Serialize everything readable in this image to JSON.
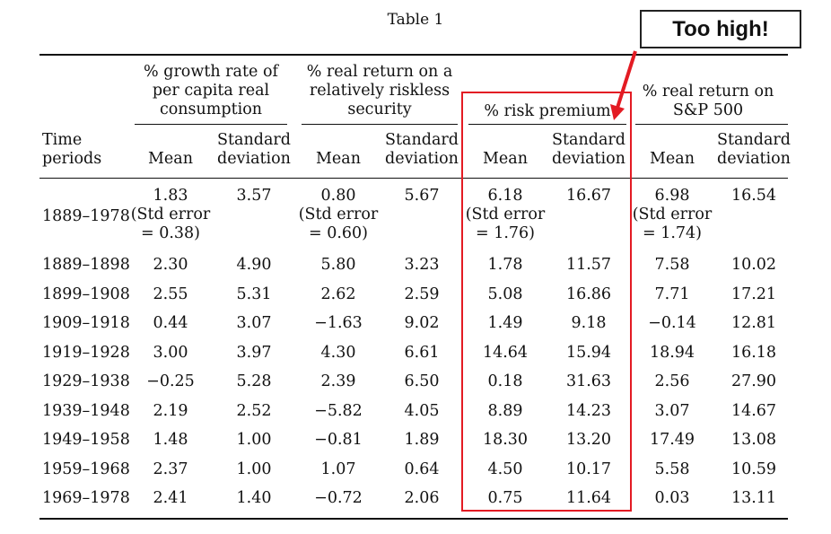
{
  "caption": "Table 1",
  "callout": "Too high!",
  "colors": {
    "highlight": "#e31b23",
    "arrow": "#e31b23"
  },
  "header": {
    "time_periods": "Time\nperiods",
    "groups": [
      "% growth rate of\nper capita real\nconsumption",
      "% real return on a\nrelatively riskless\nsecurity",
      "% risk premium",
      "% real return on\nS&P 500"
    ],
    "mean": "Mean",
    "std": "Standard\ndeviation"
  },
  "summary": {
    "period": "1889–1978",
    "cells": [
      {
        "mean": "1.83\n(Std error\n= 0.38)",
        "std": "3.57"
      },
      {
        "mean": "0.80\n(Std error\n= 0.60)",
        "std": "5.67"
      },
      {
        "mean": "6.18\n(Std error\n= 1.76)",
        "std": "16.67"
      },
      {
        "mean": "6.98\n(Std error\n= 1.74)",
        "std": "16.54"
      }
    ]
  },
  "rows": [
    {
      "period": "1889–1898",
      "values": [
        "2.30",
        "4.90",
        "5.80",
        "3.23",
        "1.78",
        "11.57",
        "7.58",
        "10.02"
      ]
    },
    {
      "period": "1899–1908",
      "values": [
        "2.55",
        "5.31",
        "2.62",
        "2.59",
        "5.08",
        "16.86",
        "7.71",
        "17.21"
      ]
    },
    {
      "period": "1909–1918",
      "values": [
        "0.44",
        "3.07",
        "−1.63",
        "9.02",
        "1.49",
        "9.18",
        "−0.14",
        "12.81"
      ]
    },
    {
      "period": "1919–1928",
      "values": [
        "3.00",
        "3.97",
        "4.30",
        "6.61",
        "14.64",
        "15.94",
        "18.94",
        "16.18"
      ]
    },
    {
      "period": "1929–1938",
      "values": [
        "−0.25",
        "5.28",
        "2.39",
        "6.50",
        "0.18",
        "31.63",
        "2.56",
        "27.90"
      ]
    },
    {
      "period": "1939–1948",
      "values": [
        "2.19",
        "2.52",
        "−5.82",
        "4.05",
        "8.89",
        "14.23",
        "3.07",
        "14.67"
      ]
    },
    {
      "period": "1949–1958",
      "values": [
        "1.48",
        "1.00",
        "−0.81",
        "1.89",
        "18.30",
        "13.20",
        "17.49",
        "13.08"
      ]
    },
    {
      "period": "1959–1968",
      "values": [
        "2.37",
        "1.00",
        "1.07",
        "0.64",
        "4.50",
        "10.17",
        "5.58",
        "10.59"
      ]
    },
    {
      "period": "1969–1978",
      "values": [
        "2.41",
        "1.40",
        "−0.72",
        "2.06",
        "0.75",
        "11.64",
        "0.03",
        "13.11"
      ]
    }
  ]
}
